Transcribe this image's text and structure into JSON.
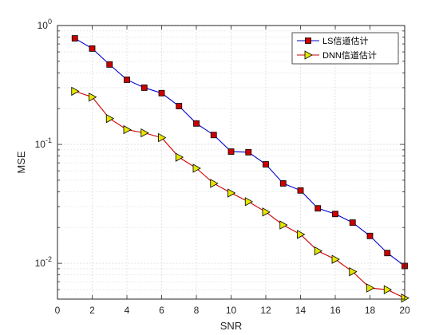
{
  "chart_data": {
    "type": "line",
    "xlabel": "SNR",
    "ylabel": "MSE",
    "xlim": [
      0,
      20
    ],
    "ylim": [
      0.005,
      1
    ],
    "yscale": "log",
    "grid": true,
    "legend_position": "top-right",
    "x_ticks": [
      0,
      2,
      4,
      6,
      8,
      10,
      12,
      14,
      16,
      18,
      20
    ],
    "y_ticks": [
      {
        "value": 0.01,
        "base": "10",
        "exp": "-2"
      },
      {
        "value": 0.1,
        "base": "10",
        "exp": "-1"
      },
      {
        "value": 1,
        "base": "10",
        "exp": "0"
      }
    ],
    "series": [
      {
        "name": "LS信道估计",
        "color": "#0000cc",
        "marker": "square",
        "marker_color": "#cc0000",
        "x": [
          1,
          2,
          3,
          4,
          5,
          6,
          7,
          8,
          9,
          10,
          11,
          12,
          13,
          14,
          15,
          16,
          17,
          18,
          19,
          20
        ],
        "values": [
          0.78,
          0.64,
          0.47,
          0.35,
          0.3,
          0.27,
          0.21,
          0.15,
          0.12,
          0.087,
          0.086,
          0.068,
          0.047,
          0.041,
          0.029,
          0.026,
          0.022,
          0.017,
          0.0122,
          0.0095
        ]
      },
      {
        "name": "DNN信道估计",
        "color": "#cc0000",
        "marker": "triangle-right",
        "marker_color": "#e6e600",
        "x": [
          1,
          2,
          3,
          4,
          5,
          6,
          7,
          8,
          9,
          10,
          11,
          12,
          13,
          14,
          15,
          16,
          17,
          18,
          19,
          20
        ],
        "values": [
          0.28,
          0.25,
          0.165,
          0.133,
          0.125,
          0.114,
          0.078,
          0.063,
          0.047,
          0.039,
          0.033,
          0.027,
          0.021,
          0.0175,
          0.0127,
          0.0108,
          0.0085,
          0.0062,
          0.006,
          0.0051
        ]
      }
    ]
  }
}
